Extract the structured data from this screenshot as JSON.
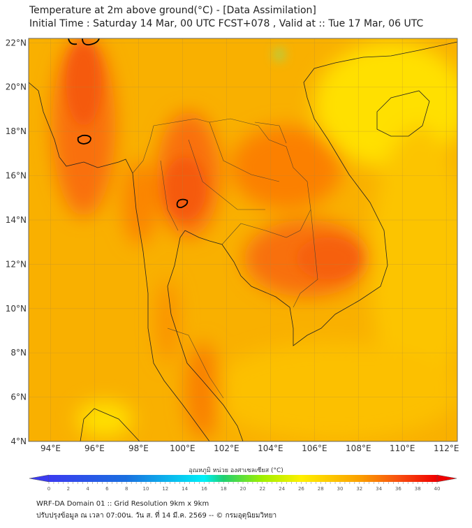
{
  "header": {
    "title": "Temperature at 2m above ground(°C) - [Data Assimilation]",
    "subtitle": "Initial Time : Saturday 14 Mar, 00 UTC FCST+078 , Valid at :: Tue 17 Mar, 06 UTC"
  },
  "map": {
    "lat_ticks": [
      {
        "value": 22,
        "label": "22°N"
      },
      {
        "value": 20,
        "label": "20°N"
      },
      {
        "value": 18,
        "label": "18°N"
      },
      {
        "value": 16,
        "label": "16°N"
      },
      {
        "value": 14,
        "label": "14°N"
      },
      {
        "value": 12,
        "label": "12°N"
      },
      {
        "value": 10,
        "label": "10°N"
      },
      {
        "value": 8,
        "label": "8°N"
      },
      {
        "value": 6,
        "label": "6°N"
      },
      {
        "value": 4,
        "label": "4°N"
      }
    ],
    "lon_ticks": [
      {
        "value": 94,
        "label": "94°E"
      },
      {
        "value": 96,
        "label": "96°E"
      },
      {
        "value": 98,
        "label": "98°E"
      },
      {
        "value": 100,
        "label": "100°E"
      },
      {
        "value": 102,
        "label": "102°E"
      },
      {
        "value": 104,
        "label": "104°E"
      },
      {
        "value": 106,
        "label": "106°E"
      },
      {
        "value": 108,
        "label": "108°E"
      },
      {
        "value": 110,
        "label": "110°E"
      },
      {
        "value": 112,
        "label": "112°E"
      }
    ],
    "lat_range": [
      4,
      22.2
    ],
    "lon_range": [
      93,
      112.5
    ],
    "colors": {
      "base": "#f9b000",
      "warm": "#fb8a00",
      "hot": "#f55a10",
      "cool": "#ffe800"
    }
  },
  "colorbar": {
    "label": "อุณหภูมิ หน่วย องศาเซลเซียส (°C)",
    "range": [
      0,
      40
    ],
    "ticks": [
      "0",
      "2",
      "4",
      "6",
      "8",
      "10",
      "12",
      "14",
      "16",
      "18",
      "20",
      "22",
      "24",
      "26",
      "28",
      "30",
      "32",
      "34",
      "36",
      "38",
      "40"
    ]
  },
  "footer": {
    "line1": "WRF-DA Domain 01 :: Grid Resolution 9km x 9km",
    "line2": "ปรับปรุงข้อมูล ณ เวลา 07:00น. วัน ส. ที่ 14 มี.ค. 2569 -- © กรมอุตุนิยมวิทยา"
  }
}
